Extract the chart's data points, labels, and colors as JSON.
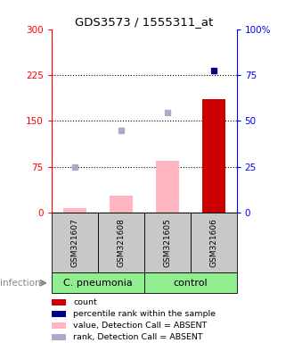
{
  "title": "GDS3573 / 1555311_at",
  "samples": [
    "GSM321607",
    "GSM321608",
    "GSM321605",
    "GSM321606"
  ],
  "bar_values": [
    7,
    28,
    85,
    185
  ],
  "bar_colors": [
    "#FFB6C1",
    "#FFB6C1",
    "#FFB6C1",
    "#CC0000"
  ],
  "rank_dots_y": [
    75,
    135,
    163,
    null
  ],
  "rank_dot_color": "#AAAACC",
  "percentile_dots_y": [
    null,
    null,
    null,
    233
  ],
  "percentile_dot_color": "#00008B",
  "left_ylim": [
    0,
    300
  ],
  "left_yticks": [
    0,
    75,
    150,
    225,
    300
  ],
  "left_ytick_labels": [
    "0",
    "75",
    "150",
    "225",
    "300"
  ],
  "right_yticks": [
    0,
    25,
    50,
    75,
    100
  ],
  "right_ytick_labels": [
    "0",
    "25",
    "50",
    "75",
    "100%"
  ],
  "dotted_lines": [
    75,
    150,
    225
  ],
  "group_labels": [
    [
      "C. pneumonia",
      0,
      2
    ],
    [
      "control",
      2,
      4
    ]
  ],
  "group_bg_color": "#90EE90",
  "sample_box_color": "#C8C8C8",
  "infection_label": "infection",
  "legend_items": [
    {
      "color": "#CC0000",
      "label": "count"
    },
    {
      "color": "#00008B",
      "label": "percentile rank within the sample"
    },
    {
      "color": "#FFB6C1",
      "label": "value, Detection Call = ABSENT"
    },
    {
      "color": "#AAAACC",
      "label": "rank, Detection Call = ABSENT"
    }
  ],
  "bar_width": 0.5
}
